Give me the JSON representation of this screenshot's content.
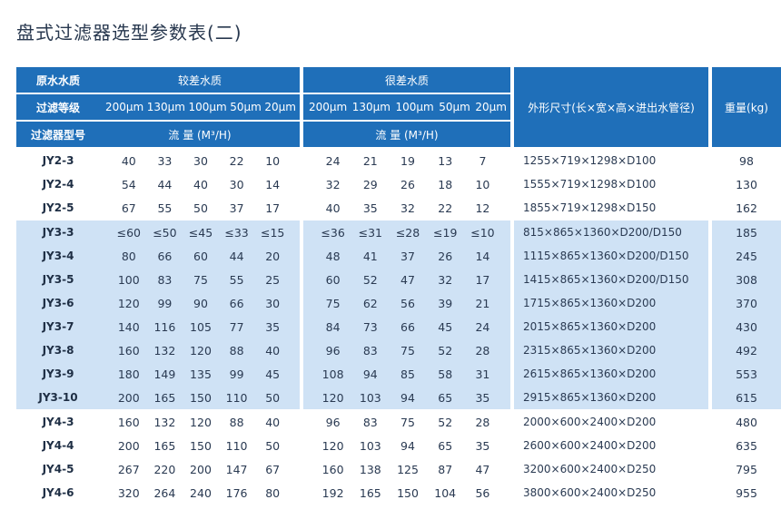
{
  "title": "盘式过滤器选型参数表(二)",
  "header": {
    "raw_water": "原水水质",
    "poor_water": "较差水质",
    "very_poor_water": "很差水质",
    "filter_grade": "过滤等级",
    "filter_model": "过滤器型号",
    "flow_label": "流 量 (M³/H)",
    "dimensions": "外形尺寸(长×宽×高×进出水管径)",
    "weight": "重量(kg)",
    "grades_poor": [
      "200μm",
      "130μm",
      "100μm",
      "50μm",
      "20μm"
    ],
    "grades_very_poor": [
      "200μm",
      "130μm",
      "100μm",
      "50μm",
      "20μm"
    ]
  },
  "rows": [
    {
      "model": "JY2-3",
      "poor": [
        "40",
        "33",
        "30",
        "22",
        "10"
      ],
      "very_poor": [
        "24",
        "21",
        "19",
        "13",
        "7"
      ],
      "dims": "1255×719×1298×D100",
      "weight": "98",
      "group": 2
    },
    {
      "model": "JY2-4",
      "poor": [
        "54",
        "44",
        "40",
        "30",
        "14"
      ],
      "very_poor": [
        "32",
        "29",
        "26",
        "18",
        "10"
      ],
      "dims": "1555×719×1298×D100",
      "weight": "130",
      "group": 2
    },
    {
      "model": "JY2-5",
      "poor": [
        "67",
        "55",
        "50",
        "37",
        "17"
      ],
      "very_poor": [
        "40",
        "35",
        "32",
        "22",
        "12"
      ],
      "dims": "1855×719×1298×D150",
      "weight": "162",
      "group": 2
    },
    {
      "model": "JY3-3",
      "poor": [
        "≤60",
        "≤50",
        "≤45",
        "≤33",
        "≤15"
      ],
      "very_poor": [
        "≤36",
        "≤31",
        "≤28",
        "≤19",
        "≤10"
      ],
      "dims": "815×865×1360×D200/D150",
      "weight": "185",
      "group": 3
    },
    {
      "model": "JY3-4",
      "poor": [
        "80",
        "66",
        "60",
        "44",
        "20"
      ],
      "very_poor": [
        "48",
        "41",
        "37",
        "26",
        "14"
      ],
      "dims": "1115×865×1360×D200/D150",
      "weight": "245",
      "group": 3
    },
    {
      "model": "JY3-5",
      "poor": [
        "100",
        "83",
        "75",
        "55",
        "25"
      ],
      "very_poor": [
        "60",
        "52",
        "47",
        "32",
        "17"
      ],
      "dims": "1415×865×1360×D200/D150",
      "weight": "308",
      "group": 3
    },
    {
      "model": "JY3-6",
      "poor": [
        "120",
        "99",
        "90",
        "66",
        "30"
      ],
      "very_poor": [
        "75",
        "62",
        "56",
        "39",
        "21"
      ],
      "dims": "1715×865×1360×D200",
      "weight": "370",
      "group": 3
    },
    {
      "model": "JY3-7",
      "poor": [
        "140",
        "116",
        "105",
        "77",
        "35"
      ],
      "very_poor": [
        "84",
        "73",
        "66",
        "45",
        "24"
      ],
      "dims": "2015×865×1360×D200",
      "weight": "430",
      "group": 3
    },
    {
      "model": "JY3-8",
      "poor": [
        "160",
        "132",
        "120",
        "88",
        "40"
      ],
      "very_poor": [
        "96",
        "83",
        "75",
        "52",
        "28"
      ],
      "dims": "2315×865×1360×D200",
      "weight": "492",
      "group": 3
    },
    {
      "model": "JY3-9",
      "poor": [
        "180",
        "149",
        "135",
        "99",
        "45"
      ],
      "very_poor": [
        "108",
        "94",
        "85",
        "58",
        "31"
      ],
      "dims": "2615×865×1360×D200",
      "weight": "553",
      "group": 3
    },
    {
      "model": "JY3-10",
      "poor": [
        "200",
        "165",
        "150",
        "110",
        "50"
      ],
      "very_poor": [
        "120",
        "103",
        "94",
        "65",
        "35"
      ],
      "dims": "2915×865×1360×D200",
      "weight": "615",
      "group": 3
    },
    {
      "model": "JY4-3",
      "poor": [
        "160",
        "132",
        "120",
        "88",
        "40"
      ],
      "very_poor": [
        "96",
        "83",
        "75",
        "52",
        "28"
      ],
      "dims": "2000×600×2400×D200",
      "weight": "480",
      "group": 4
    },
    {
      "model": "JY4-4",
      "poor": [
        "200",
        "165",
        "150",
        "110",
        "50"
      ],
      "very_poor": [
        "120",
        "103",
        "94",
        "65",
        "35"
      ],
      "dims": "2600×600×2400×D200",
      "weight": "635",
      "group": 4
    },
    {
      "model": "JY4-5",
      "poor": [
        "267",
        "220",
        "200",
        "147",
        "67"
      ],
      "very_poor": [
        "160",
        "138",
        "125",
        "87",
        "47"
      ],
      "dims": "3200×600×2400×D250",
      "weight": "795",
      "group": 4
    },
    {
      "model": "JY4-6",
      "poor": [
        "320",
        "264",
        "240",
        "176",
        "80"
      ],
      "very_poor": [
        "192",
        "165",
        "150",
        "104",
        "56"
      ],
      "dims": "3800×600×2400×D250",
      "weight": "955",
      "group": 4
    }
  ]
}
